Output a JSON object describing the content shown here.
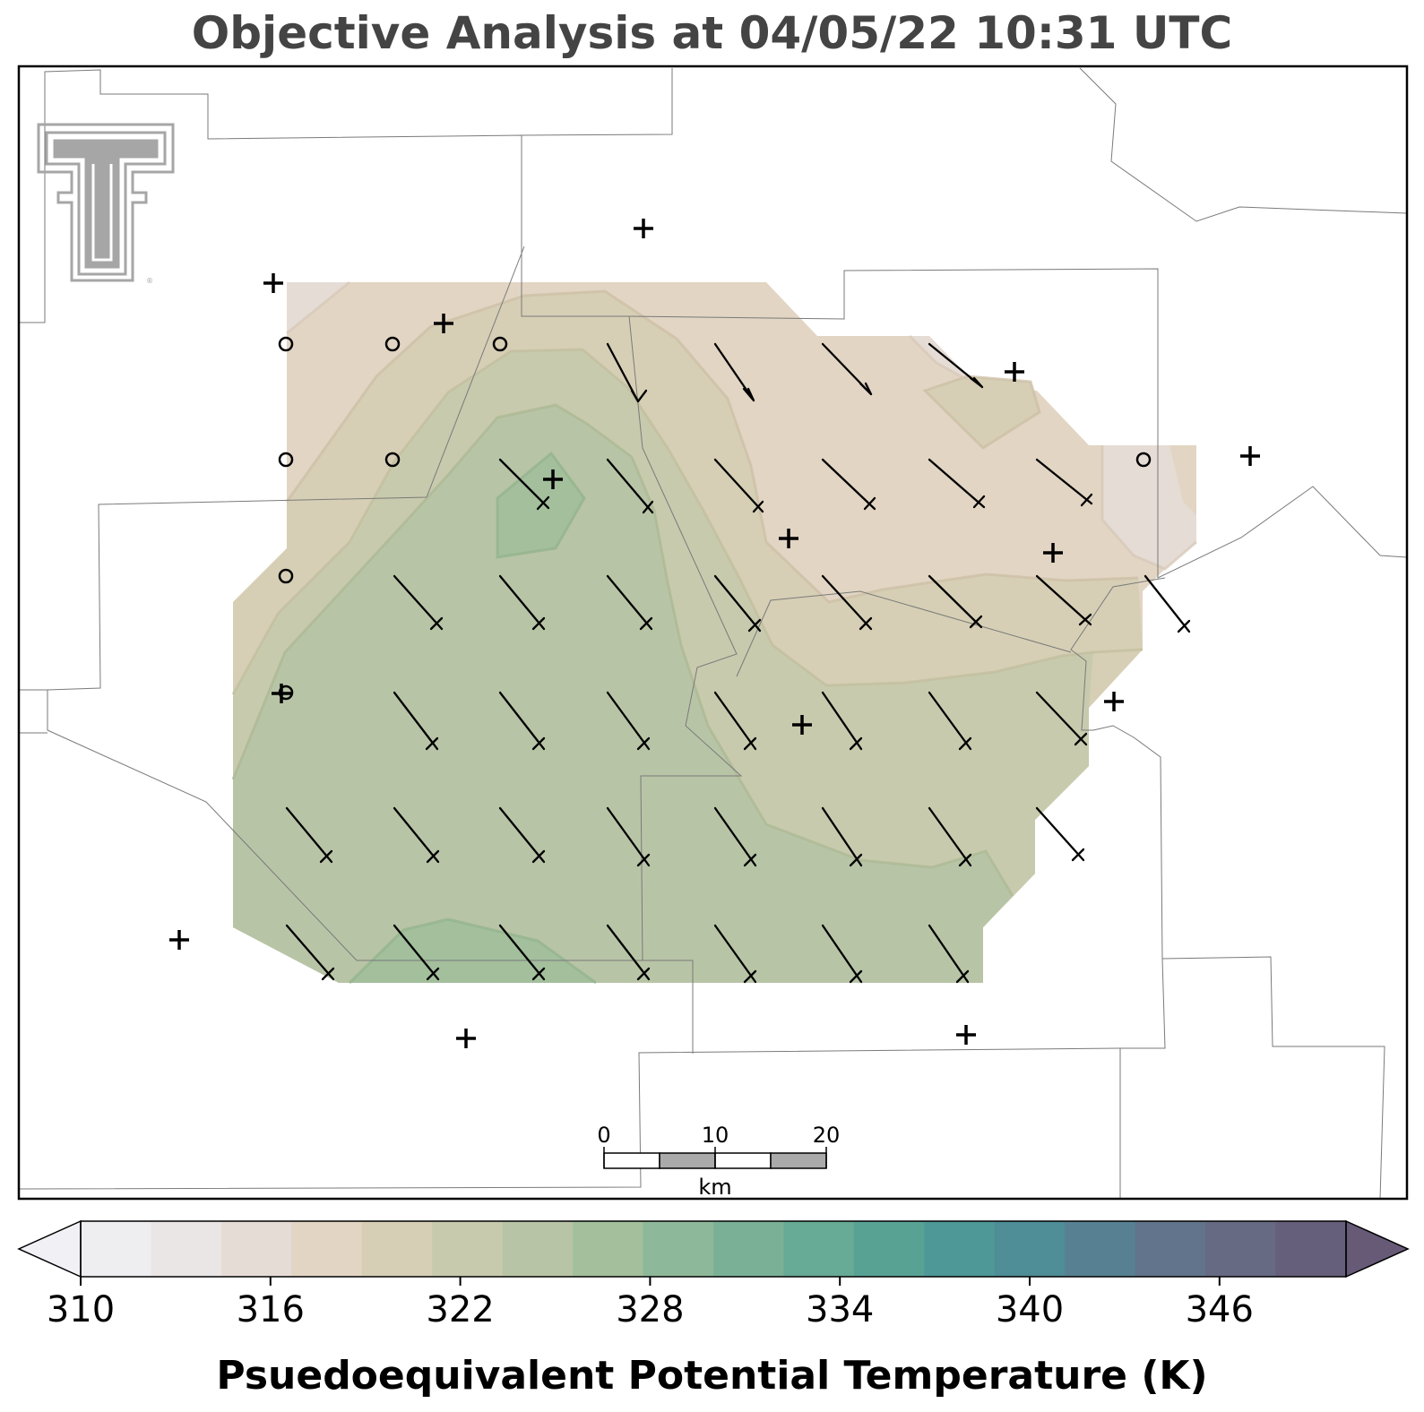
{
  "title": "Objective Analysis at 04/05/22 10:31 UTC",
  "colorbar": {
    "label": "Psuedoequivalent Potential Temperature (K)",
    "min": 310,
    "max": 350,
    "step": 2,
    "tick_labels": [
      "310",
      "316",
      "322",
      "328",
      "334",
      "340",
      "346"
    ],
    "extend": "both",
    "colors": [
      "#eeedf0",
      "#ebe6e6",
      "#e6dcd6",
      "#e2d5c3",
      "#d6cfb5",
      "#c8caad",
      "#b8c4a6",
      "#a3bf9c",
      "#8db899",
      "#7ab196",
      "#67aa95",
      "#58a294",
      "#4e9897",
      "#4f8d97",
      "#578193",
      "#62748b",
      "#666a82",
      "#665f7b"
    ],
    "under_color": "#f1f0f5",
    "over_color": "#665a77"
  },
  "scale_bar": {
    "ticks": [
      "0",
      "10",
      "20"
    ],
    "unit": "km"
  },
  "logo": {
    "name": "texas-tech-double-t",
    "color": "#a6a6a6"
  },
  "station_symbols": {
    "plus": "missing-station",
    "circle": "calm-wind"
  }
}
